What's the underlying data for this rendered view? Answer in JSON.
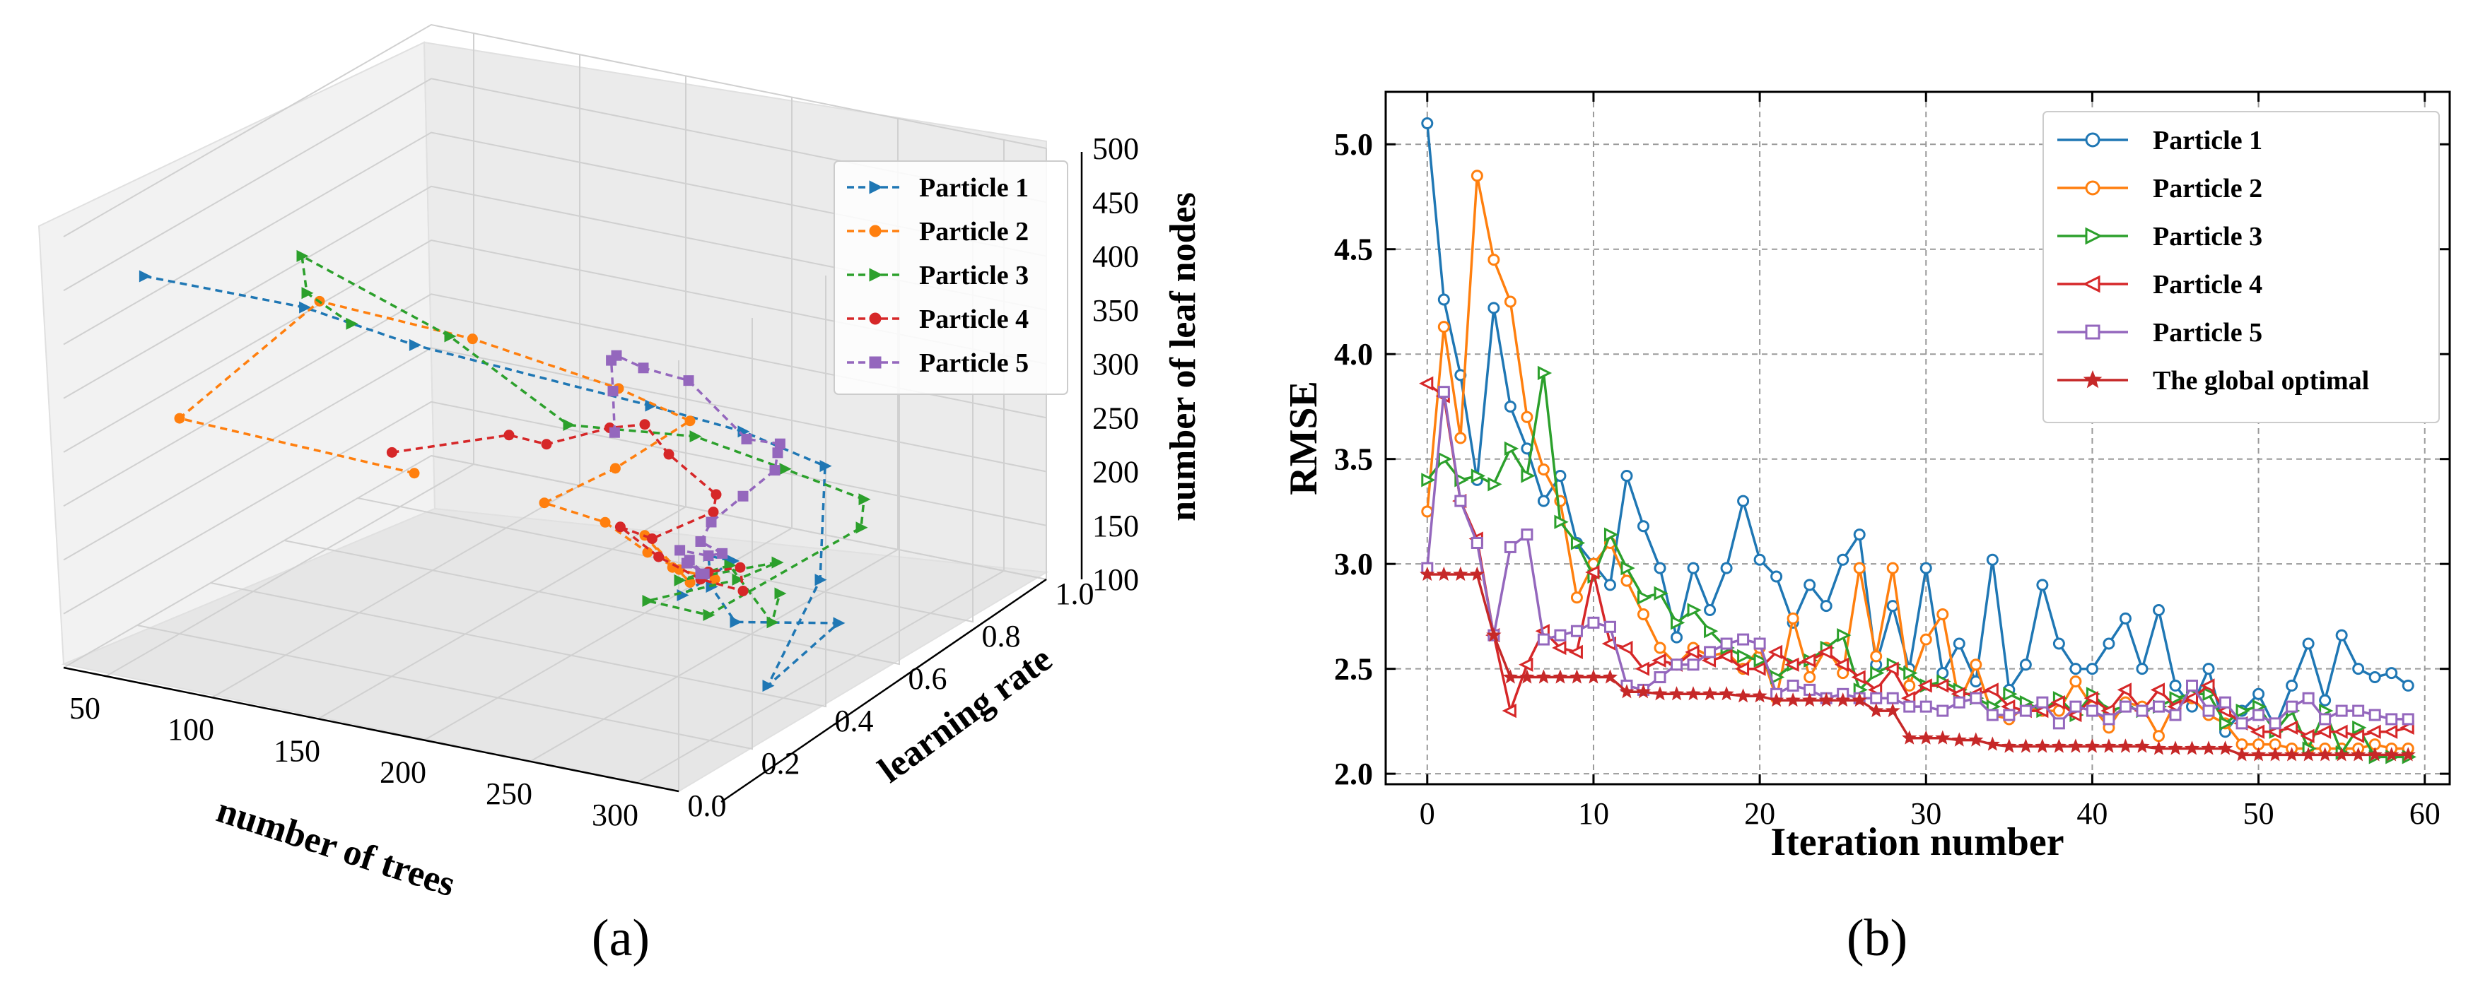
{
  "chart_data": [
    {
      "type": "scatter",
      "subtype": "3d-line",
      "panel_label": "(a)",
      "xlabel": "number of trees",
      "ylabel": "learning rate",
      "zlabel": "number of leaf nodes",
      "xlim": [
        30,
        320
      ],
      "ylim": [
        0,
        1.0
      ],
      "zlim": [
        100,
        500
      ],
      "xticks": [
        "50",
        "100",
        "150",
        "200",
        "250",
        "300"
      ],
      "yticks": [
        "0.0",
        "0.2",
        "0.4",
        "0.6",
        "0.8",
        "1.0"
      ],
      "zticks": [
        "100",
        "150",
        "200",
        "250",
        "300",
        "350",
        "400",
        "450",
        "500"
      ],
      "legend_position": "upper-right",
      "series": [
        {
          "name": "Particle 1",
          "color": "#1f77b4",
          "marker": "triangle-right",
          "points": [
            [
              30,
              0.22,
              420
            ],
            [
              95,
              0.28,
              405
            ],
            [
              140,
              0.32,
              380
            ],
            [
              220,
              0.5,
              320
            ],
            [
              255,
              0.55,
              300
            ],
            [
              285,
              0.6,
              270
            ],
            [
              300,
              0.5,
              190
            ],
            [
              310,
              0.3,
              135
            ],
            [
              300,
              0.55,
              140
            ],
            [
              260,
              0.5,
              135
            ],
            [
              240,
              0.55,
              150
            ],
            [
              230,
              0.6,
              165
            ],
            [
              245,
              0.58,
              170
            ],
            [
              235,
              0.5,
              150
            ]
          ]
        },
        {
          "name": "Particle 2",
          "color": "#ff7f0e",
          "marker": "circle",
          "points": [
            [
              100,
              0.55,
              200
            ],
            [
              50,
              0.2,
              300
            ],
            [
              90,
              0.35,
              395
            ],
            [
              150,
              0.42,
              370
            ],
            [
              205,
              0.5,
              330
            ],
            [
              230,
              0.55,
              300
            ],
            [
              200,
              0.52,
              250
            ],
            [
              170,
              0.5,
              210
            ],
            [
              190,
              0.55,
              190
            ],
            [
              210,
              0.55,
              170
            ],
            [
              225,
              0.55,
              160
            ],
            [
              240,
              0.56,
              155
            ],
            [
              220,
              0.56,
              158
            ],
            [
              200,
              0.6,
              172
            ],
            [
              230,
              0.55,
              150
            ]
          ]
        },
        {
          "name": "Particle 3",
          "color": "#2ca02c",
          "marker": "triangle-right",
          "points": [
            [
              105,
              0.35,
              380
            ],
            [
              110,
              0.2,
              440
            ],
            [
              125,
              0.1,
              500
            ],
            [
              160,
              0.3,
              400
            ],
            [
              190,
              0.45,
              300
            ],
            [
              215,
              0.65,
              260
            ],
            [
              240,
              0.75,
              220
            ],
            [
              260,
              0.85,
              180
            ],
            [
              250,
              0.9,
              140
            ],
            [
              230,
              0.6,
              110
            ],
            [
              210,
              0.55,
              125
            ],
            [
              235,
              0.65,
              135
            ],
            [
              245,
              0.7,
              145
            ],
            [
              225,
              0.55,
              150
            ],
            [
              240,
              0.6,
              160
            ],
            [
              260,
              0.6,
              115
            ],
            [
              255,
              0.65,
              130
            ]
          ]
        },
        {
          "name": "Particle 4",
          "color": "#d62728",
          "marker": "circle",
          "points": [
            [
              60,
              0.72,
              170
            ],
            [
              110,
              0.75,
              200
            ],
            [
              145,
              0.65,
              225
            ],
            [
              180,
              0.62,
              260
            ],
            [
              200,
              0.6,
              275
            ],
            [
              220,
              0.55,
              265
            ],
            [
              225,
              0.65,
              210
            ],
            [
              215,
              0.7,
              180
            ],
            [
              200,
              0.62,
              165
            ],
            [
              185,
              0.62,
              170
            ],
            [
              210,
              0.58,
              160
            ],
            [
              235,
              0.55,
              155
            ],
            [
              255,
              0.55,
              152
            ],
            [
              245,
              0.6,
              160
            ],
            [
              230,
              0.6,
              150
            ]
          ]
        },
        {
          "name": "Particle 5",
          "color": "#9467bd",
          "marker": "square",
          "points": [
            [
              165,
              0.72,
              230
            ],
            [
              185,
              0.6,
              300
            ],
            [
              205,
              0.48,
              360
            ],
            [
              230,
              0.35,
              400
            ],
            [
              260,
              0.25,
              420
            ],
            [
              290,
              0.2,
              430
            ],
            [
              300,
              0.3,
              360
            ],
            [
              295,
              0.42,
              330
            ],
            [
              280,
              0.5,
              300
            ],
            [
              270,
              0.55,
              270
            ],
            [
              255,
              0.55,
              240
            ],
            [
              240,
              0.55,
              210
            ],
            [
              235,
              0.55,
              190
            ],
            [
              240,
              0.58,
              175
            ],
            [
              230,
              0.6,
              165
            ],
            [
              220,
              0.58,
              170
            ],
            [
              235,
              0.55,
              160
            ],
            [
              228,
              0.56,
              168
            ],
            [
              235,
              0.56,
              158
            ],
            [
              225,
              0.57,
              162
            ]
          ]
        }
      ]
    },
    {
      "type": "line",
      "panel_label": "(b)",
      "xlabel": "Iteration number",
      "ylabel": "RMSE",
      "xlim": [
        -2.5,
        61.5
      ],
      "ylim": [
        1.95,
        5.25
      ],
      "xticks": [
        0,
        10,
        20,
        30,
        40,
        50,
        60
      ],
      "yticks": [
        2.0,
        2.5,
        3.0,
        3.5,
        4.0,
        4.5,
        5.0
      ],
      "grid": true,
      "legend_position": "upper-right",
      "x": [
        0,
        1,
        2,
        3,
        4,
        5,
        6,
        7,
        8,
        9,
        10,
        11,
        12,
        13,
        14,
        15,
        16,
        17,
        18,
        19,
        20,
        21,
        22,
        23,
        24,
        25,
        26,
        27,
        28,
        29,
        30,
        31,
        32,
        33,
        34,
        35,
        36,
        37,
        38,
        39,
        40,
        41,
        42,
        43,
        44,
        45,
        46,
        47,
        48,
        49,
        50,
        51,
        52,
        53,
        54,
        55,
        56,
        57,
        58,
        59
      ],
      "series": [
        {
          "name": "Particle 1",
          "color": "#1f77b4",
          "marker": "circle",
          "values": [
            5.1,
            4.26,
            3.9,
            3.4,
            4.22,
            3.75,
            3.55,
            3.3,
            3.42,
            3.1,
            3.0,
            2.9,
            3.42,
            3.18,
            2.98,
            2.65,
            2.98,
            2.78,
            2.98,
            3.3,
            3.02,
            2.94,
            2.72,
            2.9,
            2.8,
            3.02,
            3.14,
            2.52,
            2.8,
            2.5,
            2.98,
            2.48,
            2.62,
            2.44,
            3.02,
            2.4,
            2.52,
            2.9,
            2.62,
            2.5,
            2.5,
            2.62,
            2.74,
            2.5,
            2.78,
            2.42,
            2.32,
            2.5,
            2.2,
            2.3,
            2.38,
            2.22,
            2.42,
            2.62,
            2.35,
            2.66,
            2.5,
            2.46,
            2.48,
            2.42
          ]
        },
        {
          "name": "Particle 2",
          "color": "#ff7f0e",
          "marker": "circle",
          "values": [
            3.25,
            4.13,
            3.6,
            4.85,
            4.45,
            4.25,
            3.7,
            3.45,
            3.3,
            2.84,
            3.0,
            3.1,
            2.92,
            2.76,
            2.6,
            2.52,
            2.6,
            2.56,
            2.58,
            2.5,
            2.6,
            2.36,
            2.74,
            2.46,
            2.6,
            2.48,
            2.98,
            2.56,
            2.98,
            2.42,
            2.64,
            2.76,
            2.34,
            2.52,
            2.28,
            2.26,
            2.32,
            2.3,
            2.3,
            2.44,
            2.32,
            2.22,
            2.34,
            2.32,
            2.18,
            2.34,
            2.36,
            2.28,
            2.24,
            2.14,
            2.14,
            2.14,
            2.12,
            2.12,
            2.12,
            2.12,
            2.12,
            2.14,
            2.12,
            2.12
          ]
        },
        {
          "name": "Particle 3",
          "color": "#2ca02c",
          "marker": "triangle-right",
          "values": [
            3.4,
            3.5,
            3.4,
            3.42,
            3.38,
            3.55,
            3.42,
            3.91,
            3.2,
            3.1,
            2.94,
            3.14,
            2.98,
            2.84,
            2.86,
            2.72,
            2.78,
            2.68,
            2.6,
            2.56,
            2.54,
            2.46,
            2.52,
            2.54,
            2.6,
            2.66,
            2.4,
            2.48,
            2.52,
            2.48,
            2.42,
            2.44,
            2.4,
            2.36,
            2.32,
            2.38,
            2.34,
            2.3,
            2.36,
            2.28,
            2.38,
            2.3,
            2.32,
            2.3,
            2.32,
            2.36,
            2.38,
            2.38,
            2.24,
            2.3,
            2.32,
            2.2,
            2.3,
            2.12,
            2.3,
            2.1,
            2.22,
            2.08,
            2.08,
            2.08
          ]
        },
        {
          "name": "Particle 4",
          "color": "#d62728",
          "marker": "triangle-left",
          "values": [
            3.86,
            3.8,
            3.3,
            3.12,
            2.66,
            2.3,
            2.52,
            2.68,
            2.6,
            2.58,
            2.96,
            2.62,
            2.6,
            2.5,
            2.54,
            2.52,
            2.58,
            2.54,
            2.56,
            2.5,
            2.5,
            2.58,
            2.52,
            2.54,
            2.58,
            2.52,
            2.46,
            2.4,
            2.5,
            2.36,
            2.42,
            2.42,
            2.38,
            2.38,
            2.4,
            2.32,
            2.3,
            2.3,
            2.34,
            2.28,
            2.36,
            2.3,
            2.4,
            2.3,
            2.4,
            2.32,
            2.36,
            2.42,
            2.3,
            2.24,
            2.2,
            2.2,
            2.22,
            2.18,
            2.2,
            2.2,
            2.18,
            2.2,
            2.2,
            2.22
          ]
        },
        {
          "name": "Particle 5",
          "color": "#9467bd",
          "marker": "square",
          "values": [
            2.98,
            3.82,
            3.3,
            3.1,
            2.66,
            3.08,
            3.14,
            2.64,
            2.66,
            2.68,
            2.72,
            2.7,
            2.42,
            2.4,
            2.46,
            2.52,
            2.52,
            2.58,
            2.62,
            2.64,
            2.62,
            2.38,
            2.42,
            2.4,
            2.36,
            2.38,
            2.36,
            2.36,
            2.36,
            2.32,
            2.32,
            2.3,
            2.34,
            2.36,
            2.28,
            2.28,
            2.3,
            2.34,
            2.24,
            2.32,
            2.3,
            2.26,
            2.32,
            2.3,
            2.32,
            2.28,
            2.42,
            2.3,
            2.34,
            2.24,
            2.28,
            2.24,
            2.32,
            2.36,
            2.26,
            2.3,
            2.3,
            2.28,
            2.26,
            2.26
          ]
        },
        {
          "name": "The global optimal",
          "color": "#c62828",
          "marker": "star",
          "values": [
            2.95,
            2.95,
            2.95,
            2.95,
            2.66,
            2.46,
            2.46,
            2.46,
            2.46,
            2.46,
            2.46,
            2.46,
            2.39,
            2.39,
            2.38,
            2.38,
            2.38,
            2.38,
            2.38,
            2.37,
            2.37,
            2.35,
            2.35,
            2.35,
            2.35,
            2.35,
            2.35,
            2.3,
            2.3,
            2.17,
            2.17,
            2.17,
            2.16,
            2.16,
            2.14,
            2.13,
            2.13,
            2.13,
            2.13,
            2.13,
            2.13,
            2.13,
            2.13,
            2.13,
            2.12,
            2.12,
            2.12,
            2.12,
            2.12,
            2.09,
            2.09,
            2.09,
            2.09,
            2.09,
            2.09,
            2.09,
            2.09,
            2.09,
            2.09,
            2.09
          ]
        }
      ]
    }
  ]
}
